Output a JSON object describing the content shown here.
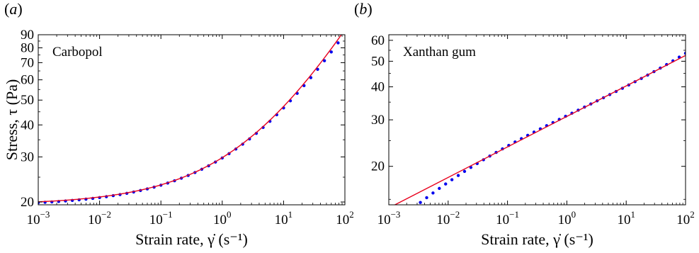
{
  "chart_data": [
    {
      "type": "scatter",
      "panel_label": "(a)",
      "annotation": "Carbopol",
      "xlabel": "Strain rate, γ̇ (s⁻¹)",
      "ylabel": "Stress, τ (Pa)",
      "xscale": "log",
      "yscale": "log",
      "xlim": [
        0.001,
        100
      ],
      "ylim": [
        19.5,
        90
      ],
      "x_ticks": [
        0.001,
        0.01,
        0.1,
        1,
        10,
        100
      ],
      "x_tick_labels": [
        {
          "base": "10",
          "exp": "−3"
        },
        {
          "base": "10",
          "exp": "−2"
        },
        {
          "base": "10",
          "exp": "−1"
        },
        {
          "base": "10",
          "exp": "0"
        },
        {
          "base": "10",
          "exp": "1"
        },
        {
          "base": "10",
          "exp": "2"
        }
      ],
      "y_ticks": [
        20,
        30,
        40,
        50,
        60,
        70,
        80,
        90
      ],
      "y_tick_labels": [
        "20",
        "30",
        "40",
        "50",
        "60",
        "70",
        "80",
        "90"
      ],
      "grid": false,
      "series": [
        {
          "style": "markers",
          "color": "#0000ee",
          "equation": {
            "form": "herschel-bulkley",
            "tau0": 19.3,
            "K": 10.4,
            "n": 0.419
          },
          "x_range": [
            0.001,
            100
          ],
          "n_points": 46
        },
        {
          "style": "line",
          "color": "#e8001c",
          "equation": {
            "form": "herschel-bulkley",
            "tau0": 19.5,
            "K": 10.3,
            "n": 0.43
          },
          "x_range": [
            0.001,
            100
          ],
          "n_points": 120
        }
      ]
    },
    {
      "type": "scatter",
      "panel_label": "(b)",
      "annotation": "Xanthan gum",
      "xlabel": "Strain rate, γ̇ (s⁻¹)",
      "ylabel": "",
      "xscale": "log",
      "yscale": "log",
      "xlim": [
        0.001,
        100
      ],
      "ylim": [
        14.3,
        63
      ],
      "x_ticks": [
        0.001,
        0.01,
        0.1,
        1,
        10,
        100
      ],
      "x_tick_labels": [
        {
          "base": "10",
          "exp": "−3"
        },
        {
          "base": "10",
          "exp": "−2"
        },
        {
          "base": "10",
          "exp": "−1"
        },
        {
          "base": "10",
          "exp": "0"
        },
        {
          "base": "10",
          "exp": "1"
        },
        {
          "base": "10",
          "exp": "2"
        }
      ],
      "y_ticks": [
        20,
        30,
        40,
        50,
        60
      ],
      "y_tick_labels": [
        "20",
        "30",
        "40",
        "50",
        "60"
      ],
      "grid": false,
      "series": [
        {
          "style": "markers",
          "color": "#0000ee",
          "equation": {
            "form": "cubic-loglog",
            "c0": 1.4928,
            "c1": 0.1102,
            "c2": -0.00198,
            "c3": 0.00297
          },
          "x_range": [
            0.001,
            100
          ],
          "n_points": 48
        },
        {
          "style": "line",
          "color": "#e8001c",
          "equation": {
            "form": "power-law",
            "K": 30.9,
            "n": 0.1155
          },
          "x_range": [
            0.001,
            100
          ],
          "n_points": 2
        }
      ]
    }
  ]
}
